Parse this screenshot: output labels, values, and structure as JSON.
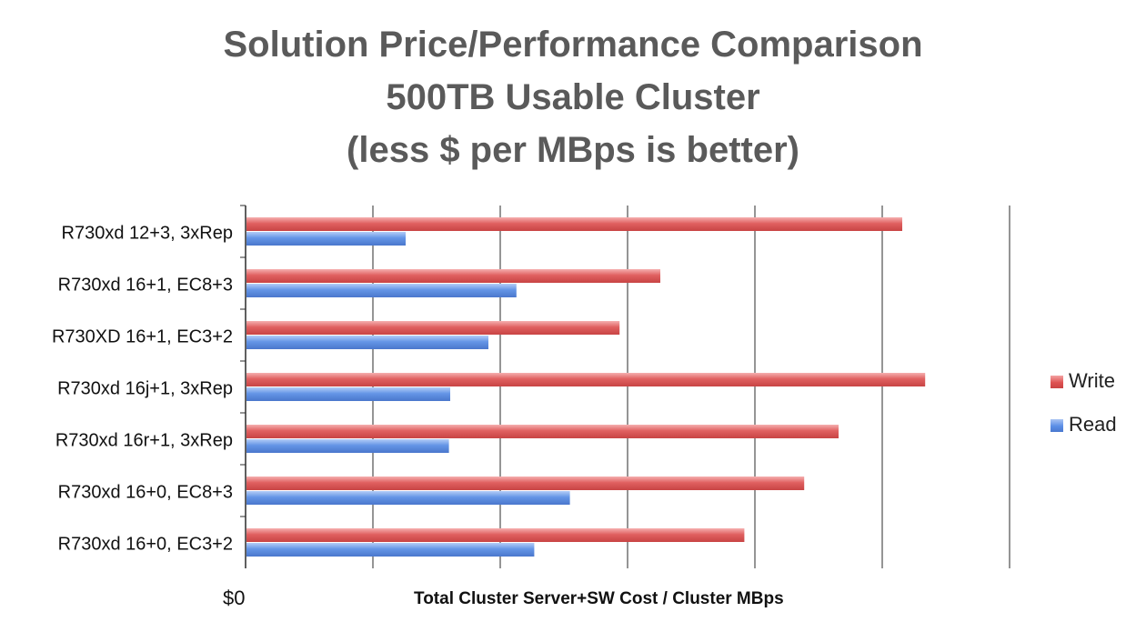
{
  "chart_data": {
    "type": "bar",
    "orientation": "horizontal",
    "title": [
      "Solution Price/Performance Comparison",
      "500TB Usable Cluster",
      "(less $ per MBps is better)"
    ],
    "xlabel": "Total Cluster Server+SW Cost / Cluster MBps",
    "ylabel": "",
    "x_tick_label": "$0",
    "xlim": [
      0,
      6
    ],
    "grid": true,
    "legend_position": "right",
    "categories": [
      "R730xd 12+3, 3xRep",
      "R730xd 16+1, EC8+3",
      "R730XD 16+1, EC3+2",
      "R730xd 16j+1, 3xRep",
      "R730xd 16r+1, 3xRep",
      "R730xd 16+0, EC8+3",
      "R730xd 16+0, EC3+2"
    ],
    "series": [
      {
        "name": "Write",
        "color": "#e05555",
        "values": [
          5.15,
          3.25,
          2.93,
          5.33,
          4.65,
          4.38,
          3.91
        ]
      },
      {
        "name": "Read",
        "color": "#5b8ee6",
        "values": [
          1.25,
          2.12,
          1.9,
          1.6,
          1.59,
          2.54,
          2.26
        ]
      }
    ]
  }
}
